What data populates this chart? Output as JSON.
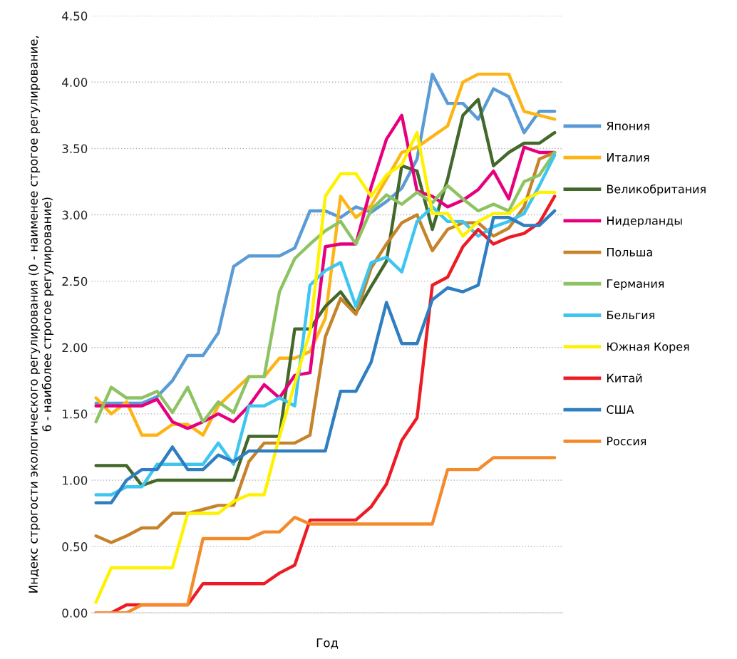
{
  "chart_data": {
    "type": "line",
    "xlabel": "Год",
    "ylabel": "Индекс строгости экологического регулирования (0 - наименее строгое регулирование,\n6 - наиболее строгое регулирование)",
    "categories": [
      null,
      null,
      null,
      null,
      null,
      null,
      null,
      null,
      null,
      null,
      null,
      null,
      null,
      null,
      null,
      null,
      null,
      null,
      null,
      null,
      null,
      null,
      null,
      null,
      null,
      null,
      null,
      null,
      null,
      null,
      null
    ],
    "ylim": [
      0,
      4.5
    ],
    "yticks": [
      {
        "value": 0,
        "label": "0.00"
      },
      {
        "value": 0.5,
        "label": "0.50"
      },
      {
        "value": 1,
        "label": "1.00"
      },
      {
        "value": 1.5,
        "label": "1.50"
      },
      {
        "value": 2,
        "label": "2.00"
      },
      {
        "value": 2.5,
        "label": "2.50"
      },
      {
        "value": 3,
        "label": "3.00"
      },
      {
        "value": 3.5,
        "label": "3.50"
      },
      {
        "value": 4,
        "label": "4.00"
      },
      {
        "value": 4.5,
        "label": "4.50"
      }
    ],
    "grid": "y",
    "legend": "right",
    "tick_labels": "y",
    "marker": "none",
    "line_style": "solid",
    "series": [
      {
        "name": "Япония",
        "color": "#5b9bd5",
        "values": [
          1.58,
          1.58,
          1.58,
          1.58,
          1.63,
          1.75,
          1.94,
          1.94,
          2.11,
          2.61,
          2.69,
          2.69,
          2.69,
          2.75,
          3.03,
          3.03,
          2.98,
          3.06,
          3.02,
          3.1,
          3.2,
          3.42,
          4.06,
          3.84,
          3.84,
          3.72,
          3.95,
          3.89,
          3.62,
          3.78,
          3.78
        ]
      },
      {
        "name": "Италия",
        "color": "#fdb515",
        "values": [
          1.62,
          1.5,
          1.59,
          1.34,
          1.34,
          1.42,
          1.42,
          1.34,
          1.56,
          1.67,
          1.78,
          1.78,
          1.92,
          1.92,
          1.97,
          2.22,
          3.14,
          2.98,
          3.07,
          3.27,
          3.47,
          3.51,
          3.59,
          3.67,
          4.0,
          4.06,
          4.06,
          4.06,
          3.78,
          3.75,
          3.72
        ]
      },
      {
        "name": "Великобритания",
        "color": "#43682b",
        "values": [
          1.11,
          1.11,
          1.11,
          0.96,
          1.0,
          1.0,
          1.0,
          1.0,
          1.0,
          1.0,
          1.33,
          1.33,
          1.33,
          2.14,
          2.14,
          2.31,
          2.42,
          2.26,
          2.46,
          2.65,
          3.37,
          3.33,
          2.89,
          3.27,
          3.75,
          3.87,
          3.37,
          3.47,
          3.54,
          3.54,
          3.62
        ]
      },
      {
        "name": "Нидерланды",
        "color": "#e6007e",
        "values": [
          1.56,
          1.56,
          1.56,
          1.56,
          1.61,
          1.44,
          1.39,
          1.44,
          1.5,
          1.44,
          1.56,
          1.72,
          1.62,
          1.79,
          1.81,
          2.76,
          2.78,
          2.78,
          3.21,
          3.57,
          3.75,
          3.18,
          3.14,
          3.06,
          3.11,
          3.19,
          3.33,
          3.12,
          3.51,
          3.47,
          3.47
        ]
      },
      {
        "name": "Польша",
        "color": "#c5832a",
        "values": [
          0.58,
          0.53,
          0.58,
          0.64,
          0.64,
          0.75,
          0.75,
          0.78,
          0.81,
          0.81,
          1.14,
          1.28,
          1.28,
          1.28,
          1.34,
          2.08,
          2.37,
          2.25,
          2.6,
          2.78,
          2.94,
          3.0,
          2.73,
          2.89,
          2.94,
          2.94,
          2.84,
          2.9,
          3.06,
          3.42,
          3.47
        ]
      },
      {
        "name": "Германия",
        "color": "#8dc363",
        "values": [
          1.44,
          1.7,
          1.62,
          1.62,
          1.67,
          1.51,
          1.7,
          1.44,
          1.59,
          1.51,
          1.78,
          1.78,
          2.42,
          2.67,
          2.78,
          2.88,
          2.95,
          2.78,
          3.04,
          3.15,
          3.08,
          3.17,
          3.09,
          3.22,
          3.12,
          3.03,
          3.08,
          3.03,
          3.25,
          3.3,
          3.47
        ]
      },
      {
        "name": "Бельгия",
        "color": "#3ec6f0",
        "values": [
          0.89,
          0.89,
          0.95,
          0.95,
          1.12,
          1.12,
          1.12,
          1.12,
          1.28,
          1.12,
          1.56,
          1.56,
          1.62,
          1.56,
          2.47,
          2.58,
          2.64,
          2.31,
          2.64,
          2.68,
          2.57,
          2.95,
          3.06,
          2.95,
          2.95,
          2.84,
          2.91,
          2.95,
          3.01,
          3.22,
          3.45
        ]
      },
      {
        "name": "Южная Корея",
        "color": "#fff200",
        "values": [
          0.08,
          0.34,
          0.34,
          0.34,
          0.34,
          0.34,
          0.75,
          0.75,
          0.75,
          0.84,
          0.89,
          0.89,
          1.33,
          1.73,
          2.12,
          3.14,
          3.31,
          3.31,
          3.14,
          3.3,
          3.38,
          3.62,
          3.01,
          3.01,
          2.84,
          2.95,
          3.01,
          3.01,
          3.11,
          3.17,
          3.17
        ]
      },
      {
        "name": "Китай",
        "color": "#ed1c24",
        "values": [
          0,
          0,
          0.06,
          0.06,
          0.06,
          0.06,
          0.06,
          0.22,
          0.22,
          0.22,
          0.22,
          0.22,
          0.3,
          0.36,
          0.7,
          0.7,
          0.7,
          0.7,
          0.8,
          0.97,
          1.3,
          1.47,
          2.47,
          2.53,
          2.76,
          2.89,
          2.78,
          2.83,
          2.86,
          2.94,
          3.14
        ]
      },
      {
        "name": "США",
        "color": "#2e7ec1",
        "values": [
          0.83,
          0.83,
          1.0,
          1.08,
          1.08,
          1.25,
          1.08,
          1.08,
          1.19,
          1.14,
          1.22,
          1.22,
          1.22,
          1.22,
          1.22,
          1.22,
          1.67,
          1.67,
          1.89,
          2.34,
          2.03,
          2.03,
          2.36,
          2.45,
          2.42,
          2.47,
          2.98,
          2.98,
          2.92,
          2.92,
          3.03
        ]
      },
      {
        "name": "Россия",
        "color": "#f58a2b",
        "values": [
          0,
          0,
          0,
          0.06,
          0.06,
          0.06,
          0.06,
          0.56,
          0.56,
          0.56,
          0.56,
          0.61,
          0.61,
          0.72,
          0.67,
          0.67,
          0.67,
          0.67,
          0.67,
          0.67,
          0.67,
          0.67,
          0.67,
          1.08,
          1.08,
          1.08,
          1.17,
          1.17,
          1.17,
          1.17,
          1.17
        ]
      }
    ]
  }
}
